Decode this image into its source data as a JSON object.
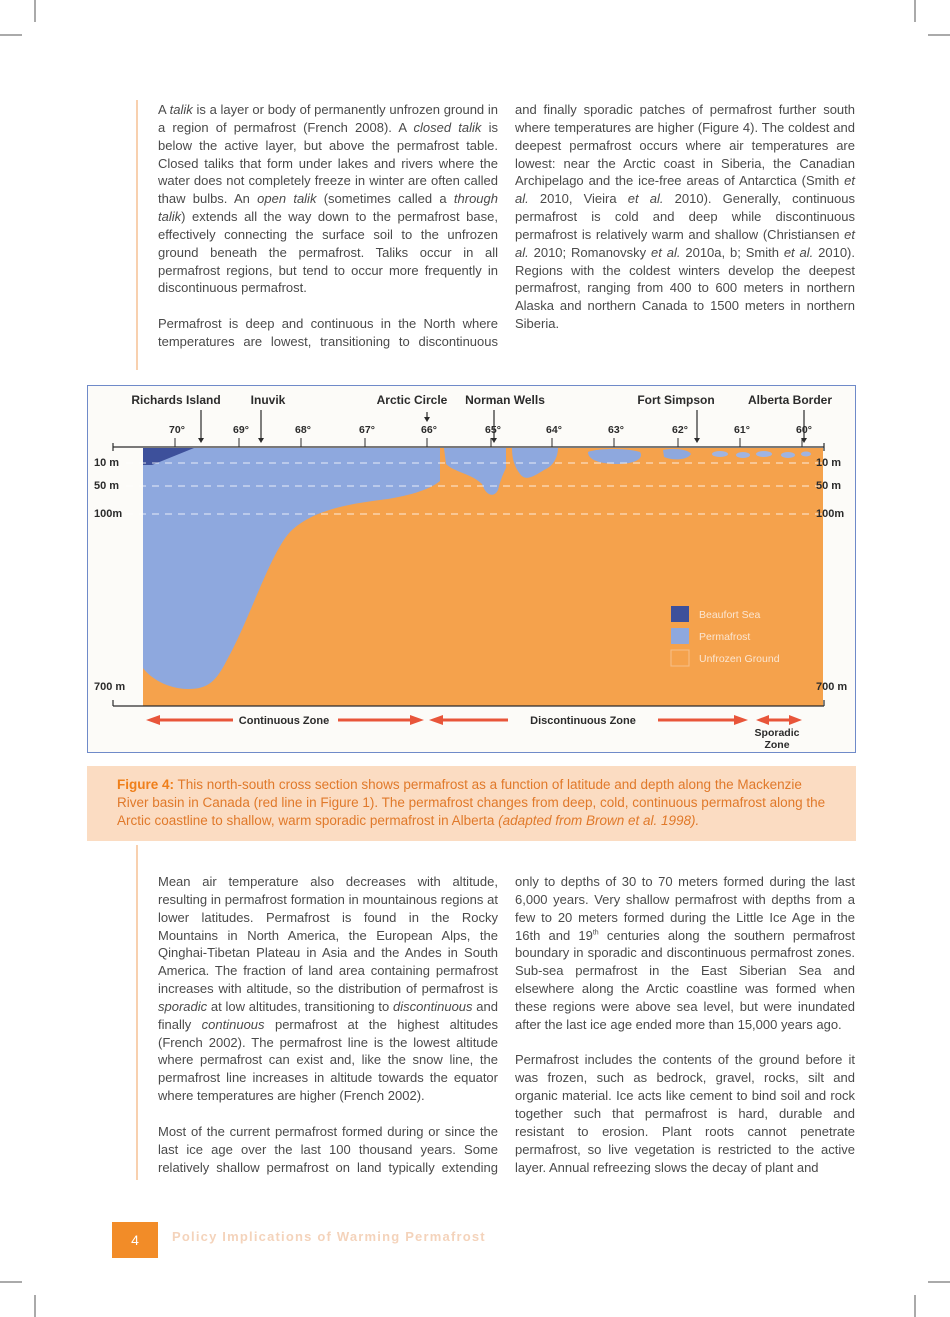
{
  "top_columns": {
    "left": [
      [
        "A ",
        {
          "i": "talik"
        },
        " is a layer or body of permanently unfrozen ground in a region of permafrost (French 2008). A ",
        {
          "i": "closed talik"
        },
        " is below the active layer, but above the permafrost table. Closed taliks that form under lakes and rivers where the water does not completely freeze in winter are often called thaw bulbs. An ",
        {
          "i": "open talik"
        },
        " (sometimes called a ",
        {
          "i": "through talik"
        },
        ") extends all the way down to the permafrost base, effectively connecting the surface soil to the unfrozen ground beneath the permafrost. Taliks occur in all permafrost regions, but tend to occur more frequently in discontinuous permafrost."
      ],
      [
        "Permafrost is deep and continuous in the North where temperatures are lowest, transitioning to discontinuous"
      ]
    ],
    "right": [
      [
        "and finally sporadic patches of permafrost further south where temperatures are higher (Figure 4). The coldest and deepest permafrost occurs where air temperatures are lowest: near the Arctic coast in Siberia, the Canadian Archipelago and the ice-free areas of Antarctica (Smith ",
        {
          "i": "et al."
        },
        " 2010, Vieira ",
        {
          "i": "et al."
        },
        " 2010). Generally, continuous permafrost is cold and deep while discontinuous permafrost is relatively warm and shallow (Christiansen ",
        {
          "i": "et al."
        },
        " 2010; Romanovsky ",
        {
          "i": "et al."
        },
        " 2010a, b; Smith ",
        {
          "i": "et al."
        },
        " 2010). Regions with the coldest winters develop the deepest permafrost, ranging from 400 to 600 meters in northern Alaska and northern Canada to 1500 meters in northern Siberia."
      ]
    ]
  },
  "figure": {
    "places": [
      "Richards Island",
      "Inuvik",
      "Arctic Circle",
      "Norman Wells",
      "Fort Simpson",
      "Alberta Border"
    ],
    "latitudes": [
      "70°",
      "69°",
      "68°",
      "67°",
      "66°",
      "65°",
      "64°",
      "63°",
      "62°",
      "61°",
      "60°"
    ],
    "depths": [
      "10 m",
      "50 m",
      "100m",
      "700 m"
    ],
    "legend": [
      "Beaufort Sea",
      "Permafrost",
      "Unfrozen Ground"
    ],
    "zones": [
      "Continuous Zone",
      "Discontinuous Zone"
    ],
    "sporadic_zone": [
      "Sporadic",
      "Zone"
    ]
  },
  "caption": {
    "label": "Figure 4:",
    "text": [
      " This north-south cross section shows permafrost as a function of latitude and depth along the Mackenzie River basin in Canada (red line in Figure 1). The permafrost changes from deep, cold, continuous permafrost along the Arctic coastline to shallow, warm sporadic permafrost in Alberta ",
      {
        "i": "(adapted from Brown et al. 1998)."
      }
    ]
  },
  "bottom_columns": {
    "left": [
      [
        "Mean air temperature also decreases with altitude, resulting in permafrost formation in mountainous regions at lower latitudes. Permafrost is found in the Rocky Mountains in North America, the European Alps, the Qinghai-Tibetan Plateau in Asia and the Andes in South America. The fraction of land area containing permafrost increases with altitude, so the distribution of permafrost is ",
        {
          "i": "sporadic"
        },
        " at low altitudes, transitioning to ",
        {
          "i": "discontinuous"
        },
        " and finally ",
        {
          "i": "continuous"
        },
        " permafrost at the highest altitudes (French 2002). The permafrost line is the lowest altitude where permafrost can exist and, like the snow line, the permafrost line increases in altitude towards the equator where temperatures are higher (French 2002)."
      ],
      [
        "Most of the current permafrost formed during or since the last ice age over the last 100 thousand years. Some relatively shallow permafrost on land typically extending"
      ]
    ],
    "right": [
      [
        "only to depths of 30 to 70 meters formed during the last 6,000 years. Very shallow permafrost with depths from a few to 20 meters formed during the Little Ice Age in the 16th and 19",
        {
          "sup": "th"
        },
        " centuries along the southern permafrost boundary in sporadic and discontinuous permafrost zones. Sub-sea permafrost in the East Siberian Sea and elsewhere along the Arctic coastline was formed when these regions were above sea level, but were inundated after the last ice age ended more than 15,000 years ago."
      ],
      [
        "Permafrost includes the contents of the ground before it was frozen, such as bedrock, gravel, rocks, silt and organic material. Ice acts like cement to bind soil and rock together such that permafrost is hard, durable and resistant to erosion. Plant roots cannot penetrate permafrost, so live vegetation is restricted to the active layer. Annual refreezing slows the decay of plant and"
      ]
    ]
  },
  "footer": {
    "page": "4",
    "title": "Policy Implications of Warming Permafrost"
  }
}
